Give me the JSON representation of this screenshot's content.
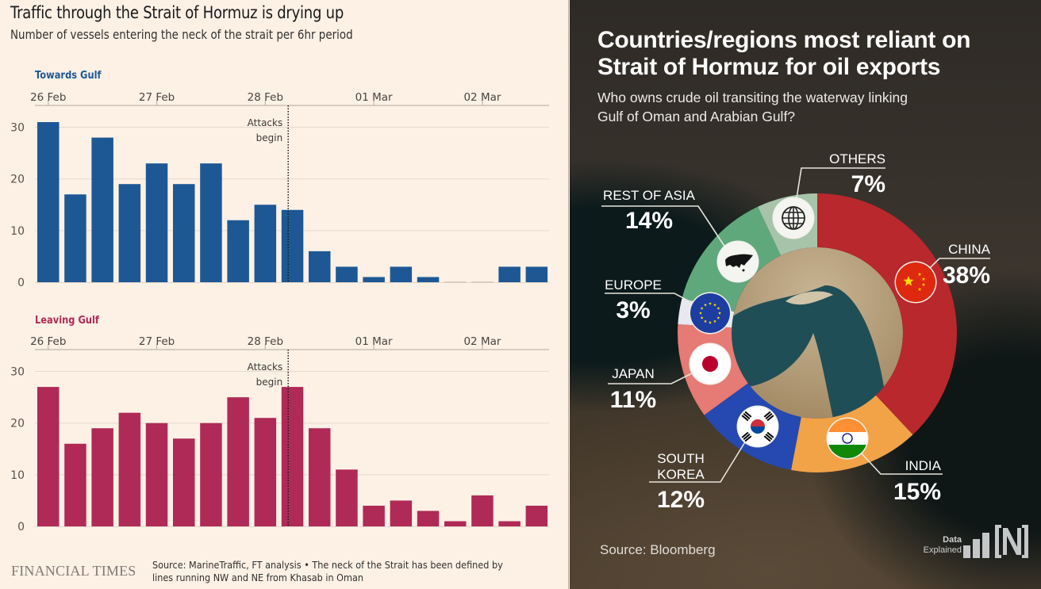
{
  "left_panel": {
    "title": "Traffic through the Strait of Hormuz is drying up",
    "subtitle": "Number of vessels entering the neck of the strait per 6hr period",
    "logo": "FINANCIAL TIMES",
    "source": "Source: MarineTraffic, FT analysis • The neck of the Strait has been defined by lines running NW and NE from Khasab in Oman"
  },
  "right_panel": {
    "title_line1": "Countries/regions most reliant on",
    "title_line2": "Strait of Hormuz for oil exports",
    "subtitle_line1": "Who owns crude oil transiting the waterway linking",
    "subtitle_line2": "Gulf of Oman and Arabian Gulf?",
    "source": "Source: Bloomberg",
    "brand_line1": "Data",
    "brand_line2": "Explained",
    "brand_logo": "N"
  },
  "chart_data": [
    {
      "type": "bar",
      "title": "Towards Gulf",
      "color": "#1d5895",
      "x_tick_labels": [
        "26 Feb",
        "27 Feb",
        "28 Feb",
        "01 Mar",
        "02 Mar"
      ],
      "x_tick_bar_index": [
        0,
        4,
        8,
        12,
        16
      ],
      "bars_per_day": 4,
      "period": "6hr",
      "values": [
        31,
        17,
        28,
        19,
        23,
        19,
        23,
        12,
        15,
        14,
        6,
        3,
        1,
        3,
        1,
        0,
        0,
        3,
        3
      ],
      "ylim": [
        0,
        33
      ],
      "y_ticks": [
        0,
        10,
        20,
        30
      ],
      "grid": true,
      "annotation": {
        "text_line1": "Attacks",
        "text_line2": "begin",
        "at_bar_position": 9.1
      }
    },
    {
      "type": "bar",
      "title": "Leaving Gulf",
      "color": "#b02a57",
      "x_tick_labels": [
        "26 Feb",
        "27 Feb",
        "28 Feb",
        "01 Mar",
        "02 Mar"
      ],
      "x_tick_bar_index": [
        0,
        4,
        8,
        12,
        16
      ],
      "bars_per_day": 4,
      "period": "6hr",
      "values": [
        27,
        16,
        19,
        22,
        20,
        17,
        20,
        25,
        21,
        27,
        19,
        11,
        4,
        5,
        3,
        1,
        6,
        1,
        4
      ],
      "ylim": [
        0,
        33
      ],
      "y_ticks": [
        0,
        10,
        20,
        30
      ],
      "grid": true,
      "annotation": {
        "text_line1": "Attacks",
        "text_line2": "begin",
        "at_bar_position": 9.1
      }
    },
    {
      "type": "pie",
      "variant": "donut",
      "title": "Countries/regions most reliant on Strait of Hormuz for oil exports",
      "start": "top",
      "direction": "clockwise",
      "slices": [
        {
          "label": "CHINA",
          "value": 38,
          "pct_text": "38%",
          "color": "#b8282c",
          "icon": "china-flag-icon"
        },
        {
          "label": "INDIA",
          "value": 15,
          "pct_text": "15%",
          "color": "#f2a247",
          "icon": "india-flag-icon"
        },
        {
          "label": "SOUTH KOREA",
          "value": 12,
          "pct_text": "12%",
          "color": "#2549b0",
          "icon": "south-korea-flag-icon"
        },
        {
          "label": "JAPAN",
          "value": 11,
          "pct_text": "11%",
          "color": "#e67a74",
          "icon": "japan-flag-icon"
        },
        {
          "label": "EUROPE",
          "value": 3,
          "pct_text": "3%",
          "color": "#e8e8f0",
          "icon": "eu-flag-icon"
        },
        {
          "label": "REST OF ASIA",
          "value": 14,
          "pct_text": "14%",
          "color": "#5fa87c",
          "icon": "asia-map-icon"
        },
        {
          "label": "OTHERS",
          "value": 7,
          "pct_text": "7%",
          "color": "#a7c4aa",
          "icon": "globe-icon"
        }
      ]
    }
  ]
}
